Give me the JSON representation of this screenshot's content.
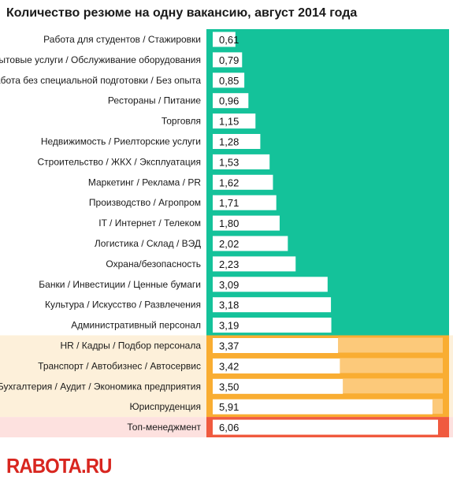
{
  "title": "Количество резюме на одну вакансию, август 2014 года",
  "logo_text": "RABOTA.RU",
  "colors": {
    "green": "#14c29a",
    "orange": "#f9ad32",
    "orange_light": "#fcc97a",
    "orange_bg": "#fdf0da",
    "red": "#f05a3f",
    "red_bg": "#fde1df",
    "bar": "#ffffff",
    "logo": "#d8261f"
  },
  "chart_data": {
    "type": "bar",
    "orientation": "horizontal",
    "title": "Количество резюме на одну вакансию, август 2014 года",
    "categories": [
      "Работа для студентов / Стажировки",
      "Бытовые услуги / Обслуживание оборудования",
      "Работа без специальной подготовки / Без опыта",
      "Рестораны / Питание",
      "Торговля",
      "Недвижимость / Риелторские услуги",
      "Строительство / ЖКХ / Эксплуатация",
      "Маркетинг / Реклама / PR",
      "Производство / Агропром",
      "IT / Интернет / Телеком",
      "Логистика / Склад / ВЭД",
      "Охрана/безопасность",
      "Банки / Инвестиции / Ценные бумаги",
      "Культура / Искусство / Развлечения",
      "Административный персонал",
      "HR / Кадры / Подбор персонала",
      "Транспорт / Автобизнес / Автосервис",
      "Бухгалтерия / Аудит / Экономика предприятия",
      "Юриспруденция",
      "Топ-менеджмент"
    ],
    "value_labels": [
      "0,61",
      "0,79",
      "0,85",
      "0,96",
      "1,15",
      "1,28",
      "1,53",
      "1,62",
      "1,71",
      "1,80",
      "2,02",
      "2,23",
      "3,09",
      "3,18",
      "3,19",
      "3,37",
      "3,42",
      "3,50",
      "5,91",
      "6,06"
    ],
    "values": [
      0.61,
      0.79,
      0.85,
      0.96,
      1.15,
      1.28,
      1.53,
      1.62,
      1.71,
      1.8,
      2.02,
      2.23,
      3.09,
      3.18,
      3.19,
      3.37,
      3.42,
      3.5,
      5.91,
      6.06
    ],
    "groups": [
      "green",
      "green",
      "green",
      "green",
      "green",
      "green",
      "green",
      "green",
      "green",
      "green",
      "green",
      "green",
      "green",
      "green",
      "green",
      "orange",
      "orange",
      "orange",
      "orange",
      "red"
    ]
  }
}
